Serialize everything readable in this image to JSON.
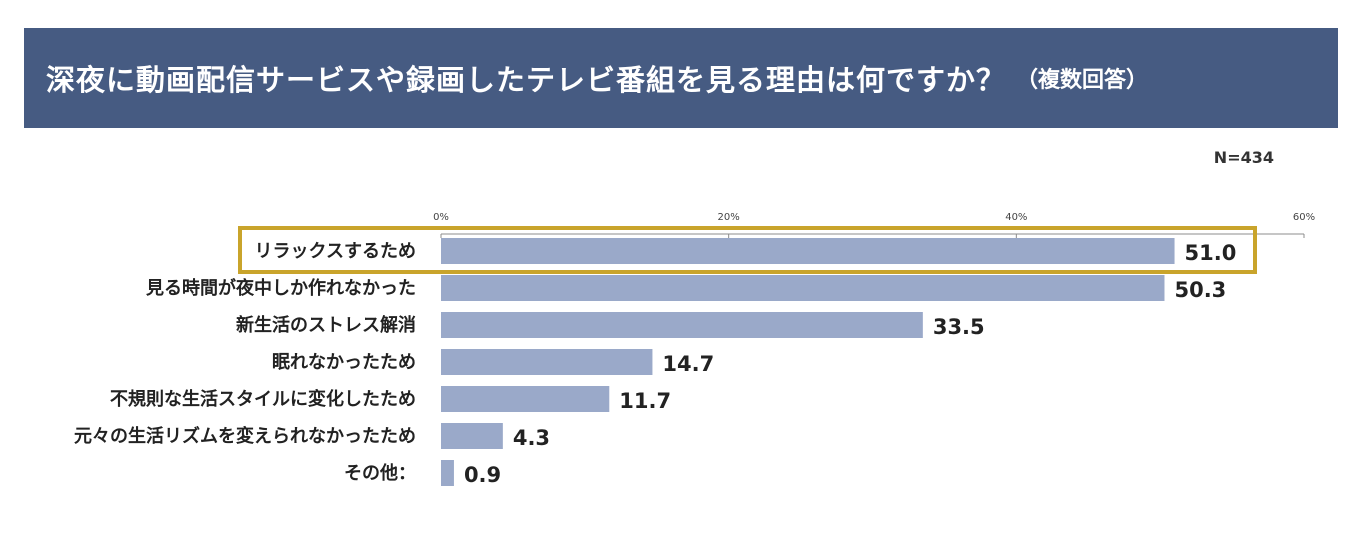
{
  "header": {
    "title": "深夜に動画配信サービスや録画したテレビ番組を見る理由は何ですか？",
    "subtitle": "（複数回答）"
  },
  "sample_size": "N=434",
  "colors": {
    "header_bg": "#465b82",
    "bar": "#9aa9c9",
    "highlight_border": "#c9a42b"
  },
  "chart_data": {
    "type": "bar",
    "orientation": "horizontal",
    "title": "深夜に動画配信サービスや録画したテレビ番組を見る理由は何ですか？（複数回答）",
    "xlabel": "",
    "ylabel": "",
    "xlim": [
      0,
      60
    ],
    "x_ticks": [
      "0%",
      "20%",
      "40%",
      "60%"
    ],
    "x_tick_values": [
      0,
      20,
      40,
      60
    ],
    "categories": [
      "リラックスするため",
      "見る時間が夜中しか作れなかった",
      "新生活のストレス解消",
      "眠れなかったため",
      "不規則な生活スタイルに変化したため",
      "元々の生活リズムを変えられなかったため",
      "その他："
    ],
    "values": [
      51.0,
      50.3,
      33.5,
      14.7,
      11.7,
      4.3,
      0.9
    ],
    "value_labels": [
      "51.0",
      "50.3",
      "33.5",
      "14.7",
      "11.7",
      "4.3",
      "0.9"
    ],
    "highlighted_index": 0
  }
}
